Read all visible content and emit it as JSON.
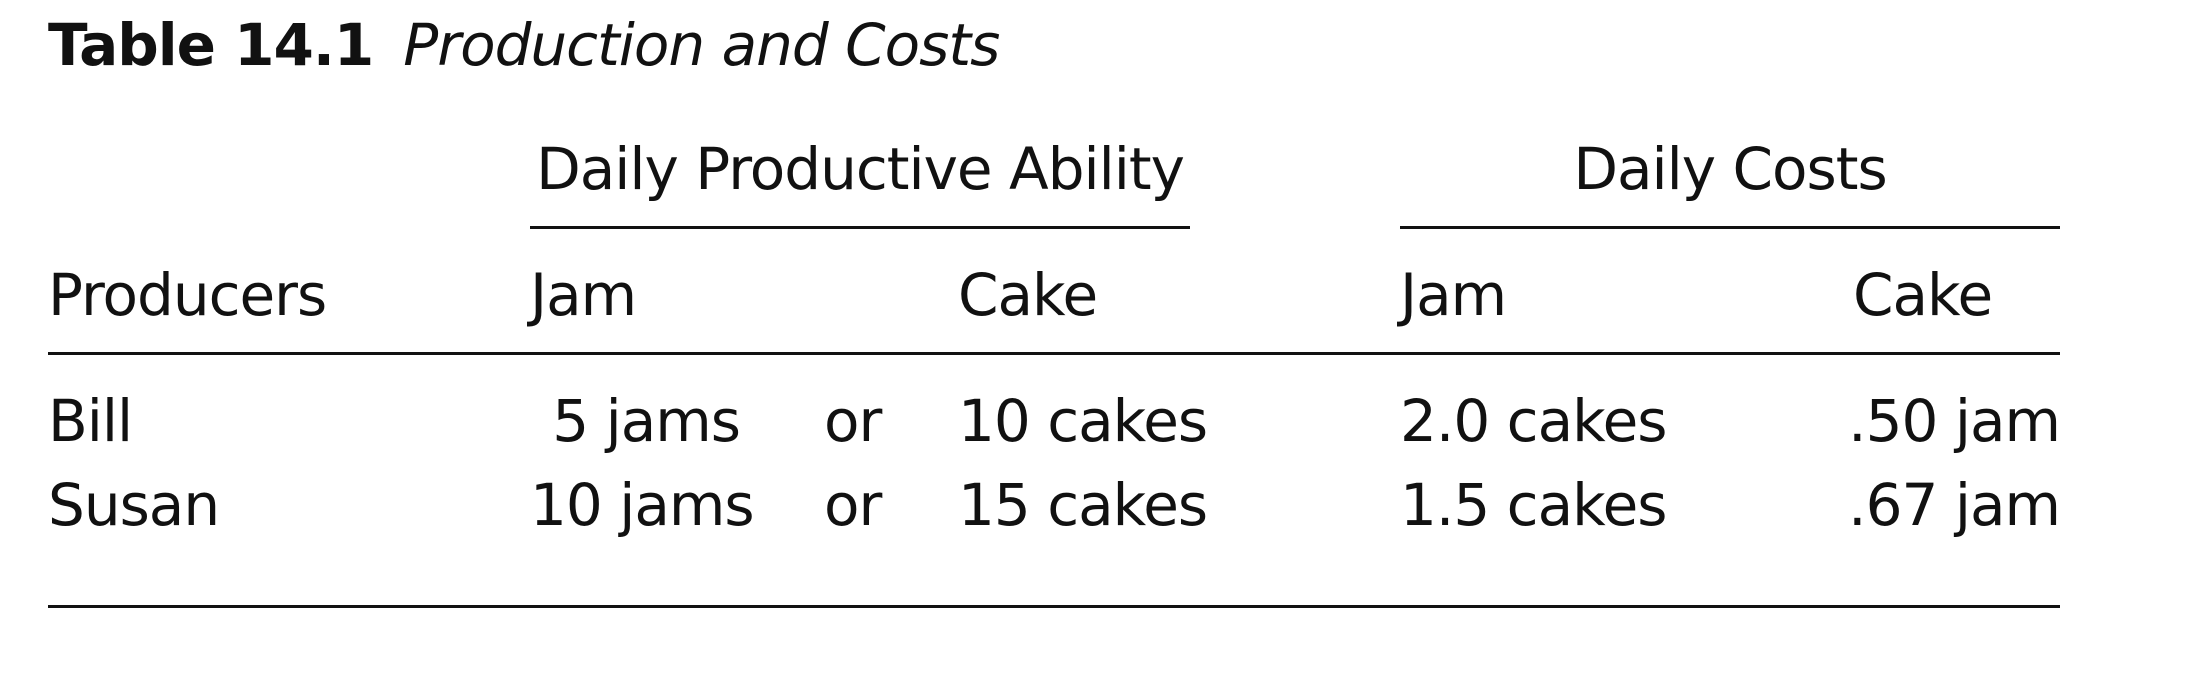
{
  "caption": {
    "label": "Table 14.1",
    "title": "Production and Costs"
  },
  "group_headers": {
    "productive": "Daily Productive Ability",
    "costs": "Daily Costs"
  },
  "columns": {
    "producers": "Producers",
    "ability_jam": "Jam",
    "ability_cake": "Cake",
    "cost_jam": "Jam",
    "cost_cake": "Cake"
  },
  "rows": [
    {
      "producer": "Bill",
      "jam": "5 jams",
      "or": "or",
      "cake": "10 cakes",
      "cost_jam": "2.0 cakes",
      "cost_cake": ".50 jam"
    },
    {
      "producer": "Susan",
      "jam": "10 jams",
      "or": "or",
      "cake": "15 cakes",
      "cost_jam": "1.5 cakes",
      "cost_cake": ".67 jam"
    }
  ]
}
